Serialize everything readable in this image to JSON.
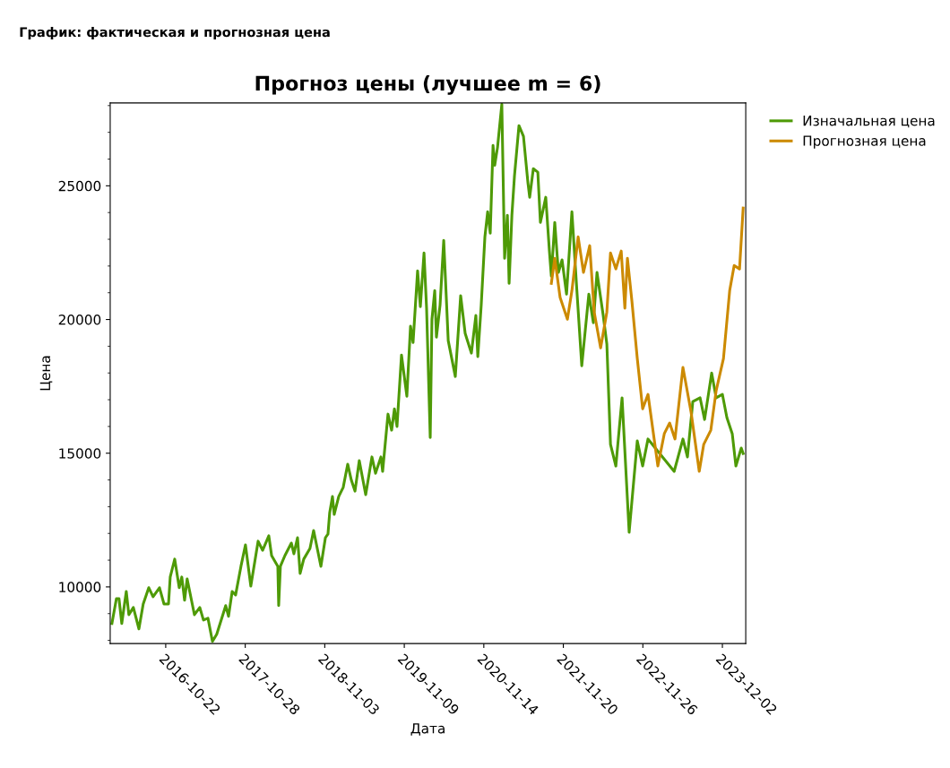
{
  "chart_data": {
    "type": "line",
    "title": "Прогноз цены (лучшее m = 6)",
    "xlabel": "Дата",
    "ylabel": "Цена",
    "annotations": [
      "График: фактическая и прогнозная цена"
    ],
    "xlim": [
      "2016-02-06",
      "2024-03-20"
    ],
    "xticks": [
      "2016-10-22",
      "2017-10-28",
      "2018-11-03",
      "2019-11-09",
      "2020-11-14",
      "2021-11-20",
      "2022-11-26",
      "2023-12-02"
    ],
    "ylim": [
      7880,
      28100
    ],
    "yticks": [
      10000,
      15000,
      20000,
      25000
    ],
    "grid": false,
    "legend": "top right",
    "line_style": "solid",
    "marker": "none",
    "series": [
      {
        "name": "Изначальная цена",
        "color": "#4e9a06",
        "x": [
          "2016-02-14",
          "2016-03-06",
          "2016-03-18",
          "2016-03-31",
          "2016-04-21",
          "2016-05-03",
          "2016-05-24",
          "2016-06-19",
          "2016-07-09",
          "2016-08-04",
          "2016-08-24",
          "2016-09-23",
          "2016-10-14",
          "2016-11-04",
          "2016-11-12",
          "2016-12-03",
          "2016-12-24",
          "2017-01-05",
          "2017-01-18",
          "2017-01-30",
          "2017-03-05",
          "2017-03-30",
          "2017-04-16",
          "2017-05-07",
          "2017-05-28",
          "2017-06-17",
          "2017-07-29",
          "2017-08-11",
          "2017-08-28",
          "2017-09-13",
          "2017-10-08",
          "2017-10-29",
          "2017-11-23",
          "2017-12-27",
          "2018-01-17",
          "2018-02-15",
          "2018-02-28",
          "2018-03-29",
          "2018-04-02",
          "2018-04-10",
          "2018-05-01",
          "2018-05-31",
          "2018-06-12",
          "2018-06-29",
          "2018-07-11",
          "2018-07-28",
          "2018-08-26",
          "2018-09-12",
          "2018-10-16",
          "2018-11-06",
          "2018-11-18",
          "2018-11-26",
          "2018-12-09",
          "2018-12-17",
          "2019-01-07",
          "2019-01-28",
          "2019-02-18",
          "2019-03-07",
          "2019-03-24",
          "2019-04-13",
          "2019-05-13",
          "2019-06-11",
          "2019-06-28",
          "2019-07-23",
          "2019-07-31",
          "2019-08-25",
          "2019-09-11",
          "2019-09-24",
          "2019-10-06",
          "2019-10-27",
          "2019-11-21",
          "2019-12-08",
          "2019-12-20",
          "2020-01-10",
          "2020-01-23",
          "2020-02-09",
          "2020-02-21",
          "2020-03-09",
          "2020-03-17",
          "2020-03-30",
          "2020-04-07",
          "2020-04-24",
          "2020-05-11",
          "2020-06-01",
          "2020-07-04",
          "2020-07-29",
          "2020-08-19",
          "2020-09-17",
          "2020-10-08",
          "2020-10-17",
          "2020-11-02",
          "2020-11-19",
          "2020-12-02",
          "2020-12-14",
          "2020-12-27",
          "2021-01-04",
          "2021-01-17",
          "2021-02-06",
          "2021-02-19",
          "2021-03-04",
          "2021-03-12",
          "2021-03-25",
          "2021-04-06",
          "2021-04-27",
          "2021-05-18",
          "2021-06-08",
          "2021-06-16",
          "2021-07-03",
          "2021-07-24",
          "2021-08-05",
          "2021-08-30",
          "2021-09-16",
          "2021-09-25",
          "2021-10-11",
          "2021-10-28",
          "2021-11-14",
          "2021-12-05",
          "2021-12-30",
          "2022-01-20",
          "2022-02-14",
          "2022-03-19",
          "2022-04-09",
          "2022-04-26",
          "2022-05-25",
          "2022-06-11",
          "2022-06-28",
          "2022-07-23",
          "2022-08-21",
          "2022-09-23",
          "2022-10-31",
          "2022-11-25",
          "2022-12-20",
          "2023-01-23",
          "2023-04-21",
          "2023-06-01",
          "2023-06-22",
          "2023-07-17",
          "2023-08-20",
          "2023-09-10",
          "2023-10-13",
          "2023-11-03",
          "2023-12-02",
          "2023-12-23",
          "2024-01-17",
          "2024-02-03",
          "2024-02-28",
          "2024-03-08"
        ],
        "values": [
          8630,
          9560,
          9560,
          8630,
          9830,
          8960,
          9230,
          8430,
          9360,
          9970,
          9630,
          9970,
          9360,
          9360,
          10370,
          11040,
          9970,
          10370,
          9500,
          10300,
          8960,
          9230,
          8760,
          8830,
          7960,
          8230,
          9300,
          8900,
          9830,
          9700,
          10770,
          11570,
          10030,
          11710,
          11370,
          11910,
          11170,
          10770,
          9300,
          10770,
          11170,
          11640,
          11240,
          11840,
          10500,
          11040,
          11440,
          12110,
          10770,
          11840,
          11980,
          12780,
          13380,
          12710,
          13380,
          13720,
          14590,
          13990,
          13580,
          14720,
          13450,
          14860,
          14250,
          14860,
          14320,
          16460,
          15860,
          16660,
          16000,
          18670,
          17130,
          19750,
          19140,
          21820,
          20480,
          22490,
          20420,
          15590,
          20010,
          21080,
          19340,
          20550,
          22960,
          19210,
          17870,
          20890,
          19480,
          18740,
          20150,
          18610,
          20550,
          23090,
          24030,
          23230,
          26510,
          25770,
          26440,
          28050,
          22290,
          23900,
          21350,
          23900,
          25370,
          27250,
          26850,
          25100,
          24570,
          25640,
          25510,
          23630,
          24570,
          22560,
          21620,
          23630,
          21760,
          22230,
          20950,
          24030,
          21350,
          18270,
          20950,
          19880,
          21760,
          20150,
          19080,
          15330,
          14520,
          17070,
          12040,
          15460,
          14520,
          15530,
          15190,
          14320,
          15530,
          14860,
          16930,
          17070,
          16260,
          18000,
          17070,
          17200,
          16330,
          15730,
          14520,
          15190,
          14990
        ]
      },
      {
        "name": "Прогнозная цена",
        "color": "#cc8a00",
        "x": [
          "2021-09-25",
          "2021-10-11",
          "2021-11-05",
          "2021-12-09",
          "2021-12-30",
          "2022-01-28",
          "2022-02-22",
          "2022-03-23",
          "2022-04-13",
          "2022-05-13",
          "2022-06-11",
          "2022-06-28",
          "2022-07-23",
          "2022-08-17",
          "2022-09-03",
          "2022-09-15",
          "2022-10-06",
          "2022-10-31",
          "2022-11-25",
          "2022-12-20",
          "2023-02-04",
          "2023-03-06",
          "2023-03-31",
          "2023-04-25",
          "2023-06-01",
          "2023-07-09",
          "2023-08-16",
          "2023-09-06",
          "2023-10-09",
          "2023-11-03",
          "2023-12-07",
          "2024-01-05",
          "2024-01-26",
          "2024-02-20",
          "2024-03-08"
        ],
        "values": [
          21350,
          22290,
          20820,
          20010,
          21080,
          23090,
          21760,
          22760,
          20280,
          18940,
          20280,
          22490,
          21890,
          22560,
          20420,
          22290,
          20680,
          18540,
          16660,
          17200,
          14520,
          15730,
          16130,
          15530,
          18210,
          16530,
          14320,
          15330,
          15860,
          17340,
          18540,
          21080,
          22020,
          21890,
          24170
        ]
      }
    ]
  }
}
